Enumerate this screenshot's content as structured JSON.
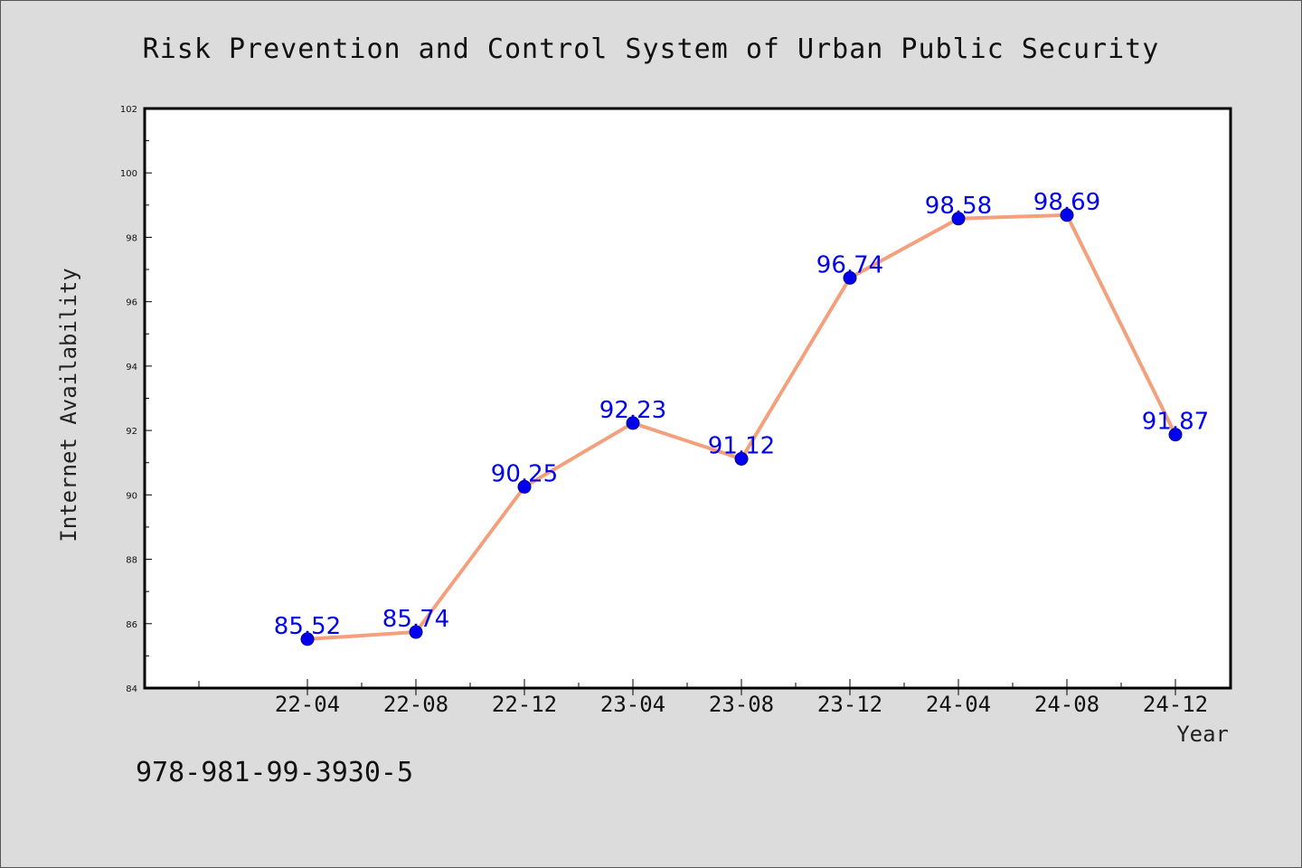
{
  "chart_data": {
    "type": "line",
    "title": "Risk Prevention and Control System of Urban Public Security",
    "xlabel": "Year",
    "ylabel": "Internet Availability",
    "categories": [
      "22-04",
      "22-08",
      "22-12",
      "23-04",
      "23-08",
      "23-12",
      "24-04",
      "24-08",
      "24-12"
    ],
    "series": [
      {
        "values": [
          85.52,
          85.74,
          90.25,
          92.23,
          91.12,
          96.74,
          98.58,
          98.69,
          91.87
        ],
        "data_labels": [
          "85.52",
          "85.74",
          "90.25",
          "92.23",
          "91.12",
          "96.74",
          "98.58",
          "98.69",
          "91.87"
        ],
        "line_color": "#f4a07c",
        "marker_color": "#0000ee"
      }
    ],
    "ylim": [
      84,
      102
    ],
    "yticks": [
      "84",
      "86",
      "88",
      "90",
      "92",
      "94",
      "96",
      "98",
      "100",
      "102"
    ],
    "grid": false,
    "legend": "none"
  },
  "footer": {
    "isbn": "978-981-99-3930-5"
  }
}
